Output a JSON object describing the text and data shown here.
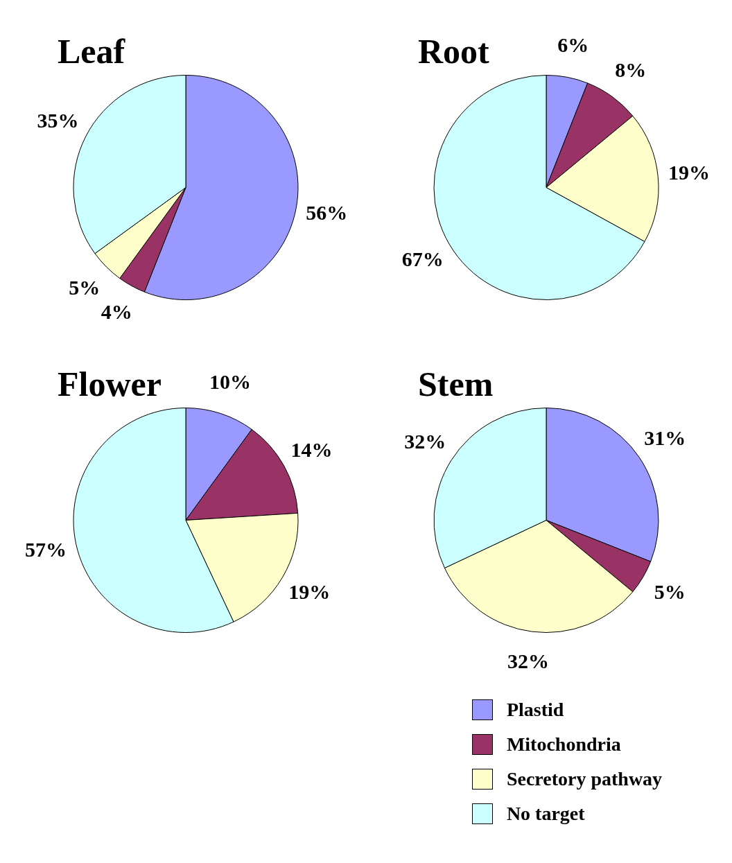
{
  "chart_data": [
    {
      "type": "pie",
      "title": "Leaf",
      "categories": [
        null,
        null,
        null,
        null
      ],
      "values": [
        56,
        4,
        5,
        35
      ],
      "value_labels": [
        "56%",
        "4%",
        "5%",
        "35%"
      ],
      "colors": [
        "#9999ff",
        "#993366",
        "#ffffcc",
        "#ccffff"
      ]
    },
    {
      "type": "pie",
      "title": "Root",
      "categories": [
        null,
        null,
        null,
        null
      ],
      "values": [
        6,
        8,
        19,
        67
      ],
      "value_labels": [
        "6%",
        "8%",
        "19%",
        "67%"
      ],
      "colors": [
        "#9999ff",
        "#993366",
        "#ffffcc",
        "#ccffff"
      ]
    },
    {
      "type": "pie",
      "title": "Flower",
      "categories": [
        null,
        null,
        null,
        null
      ],
      "values": [
        10,
        14,
        19,
        57
      ],
      "value_labels": [
        "10%",
        "14%",
        "19%",
        "57%"
      ],
      "colors": [
        "#9999ff",
        "#993366",
        "#ffffcc",
        "#ccffff"
      ]
    },
    {
      "type": "pie",
      "title": "Stem",
      "categories": [
        "Plastid",
        "Mitochondria",
        "Secretory pathway",
        "No target"
      ],
      "values": [
        31,
        5,
        32,
        32
      ],
      "value_labels": [
        "31%",
        "5%",
        "32%",
        "32%"
      ],
      "colors": [
        "#9999ff",
        "#993366",
        "#ffffcc",
        "#ccffff"
      ],
      "legend": "bottom"
    }
  ]
}
